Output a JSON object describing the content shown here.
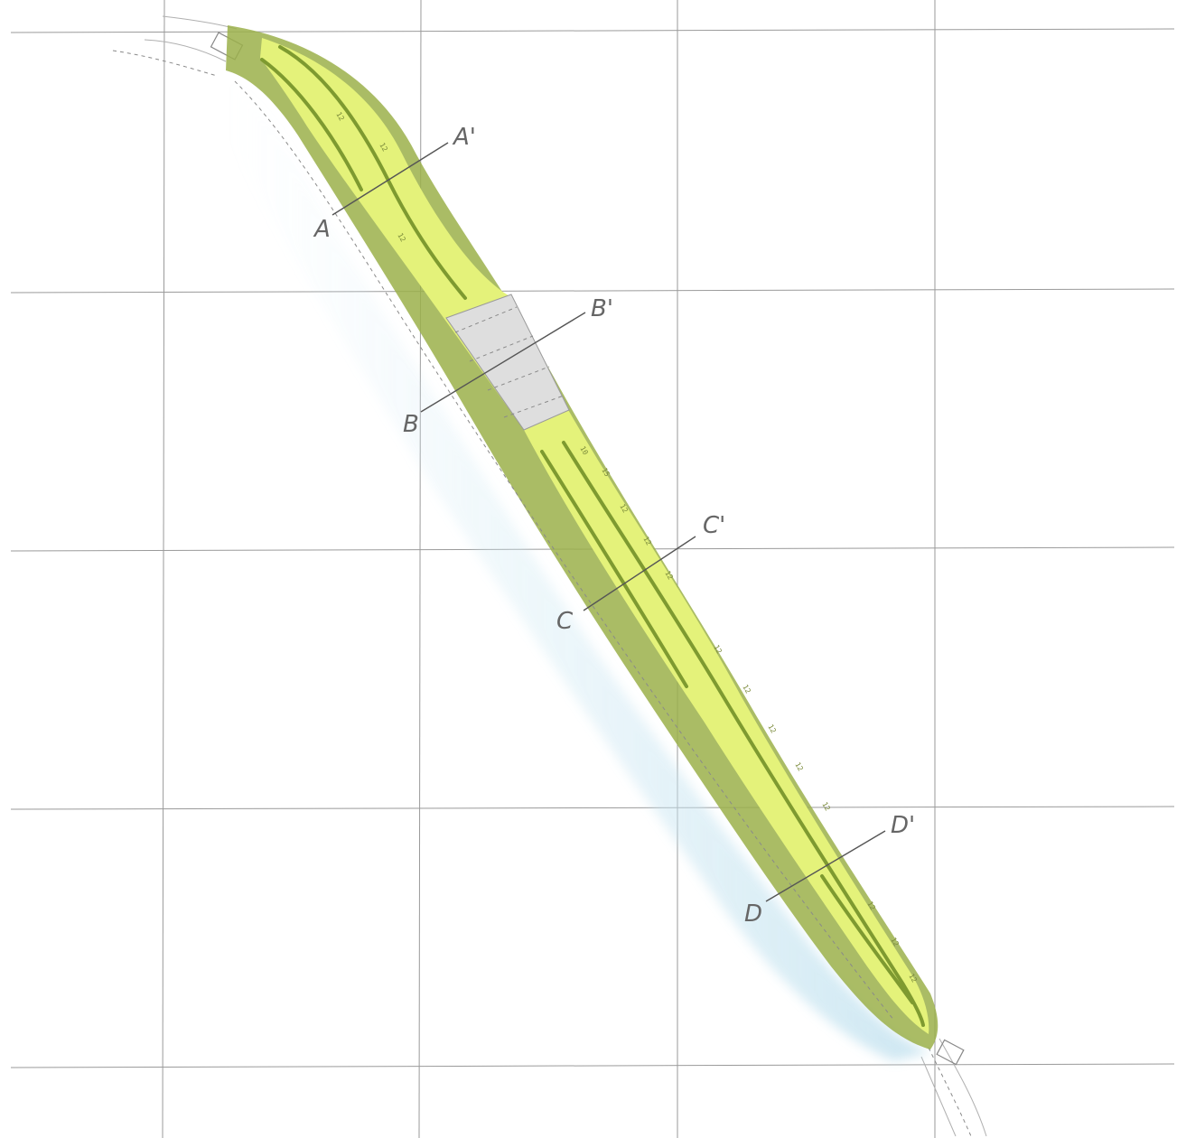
{
  "sections": [
    {
      "id": "A",
      "label_start": "A",
      "label_end": "A'"
    },
    {
      "id": "B",
      "label_start": "B",
      "label_end": "B'"
    },
    {
      "id": "C",
      "label_start": "C",
      "label_end": "C'"
    },
    {
      "id": "D",
      "label_start": "D",
      "label_end": "D'"
    }
  ],
  "colors": {
    "paper": "#ffffff",
    "grid": "#9a9a9a",
    "embankment_green": "#9bb04a",
    "deck_yellow": "#e4f27a",
    "bridge_gray": "#dedede",
    "water_blue": "#cfe8f2"
  },
  "lane_marks": [
    "12",
    "12",
    "12",
    "10",
    "15",
    "12",
    "12",
    "12",
    "12",
    "12",
    "12",
    "12",
    "12",
    "12",
    "12",
    "12"
  ]
}
